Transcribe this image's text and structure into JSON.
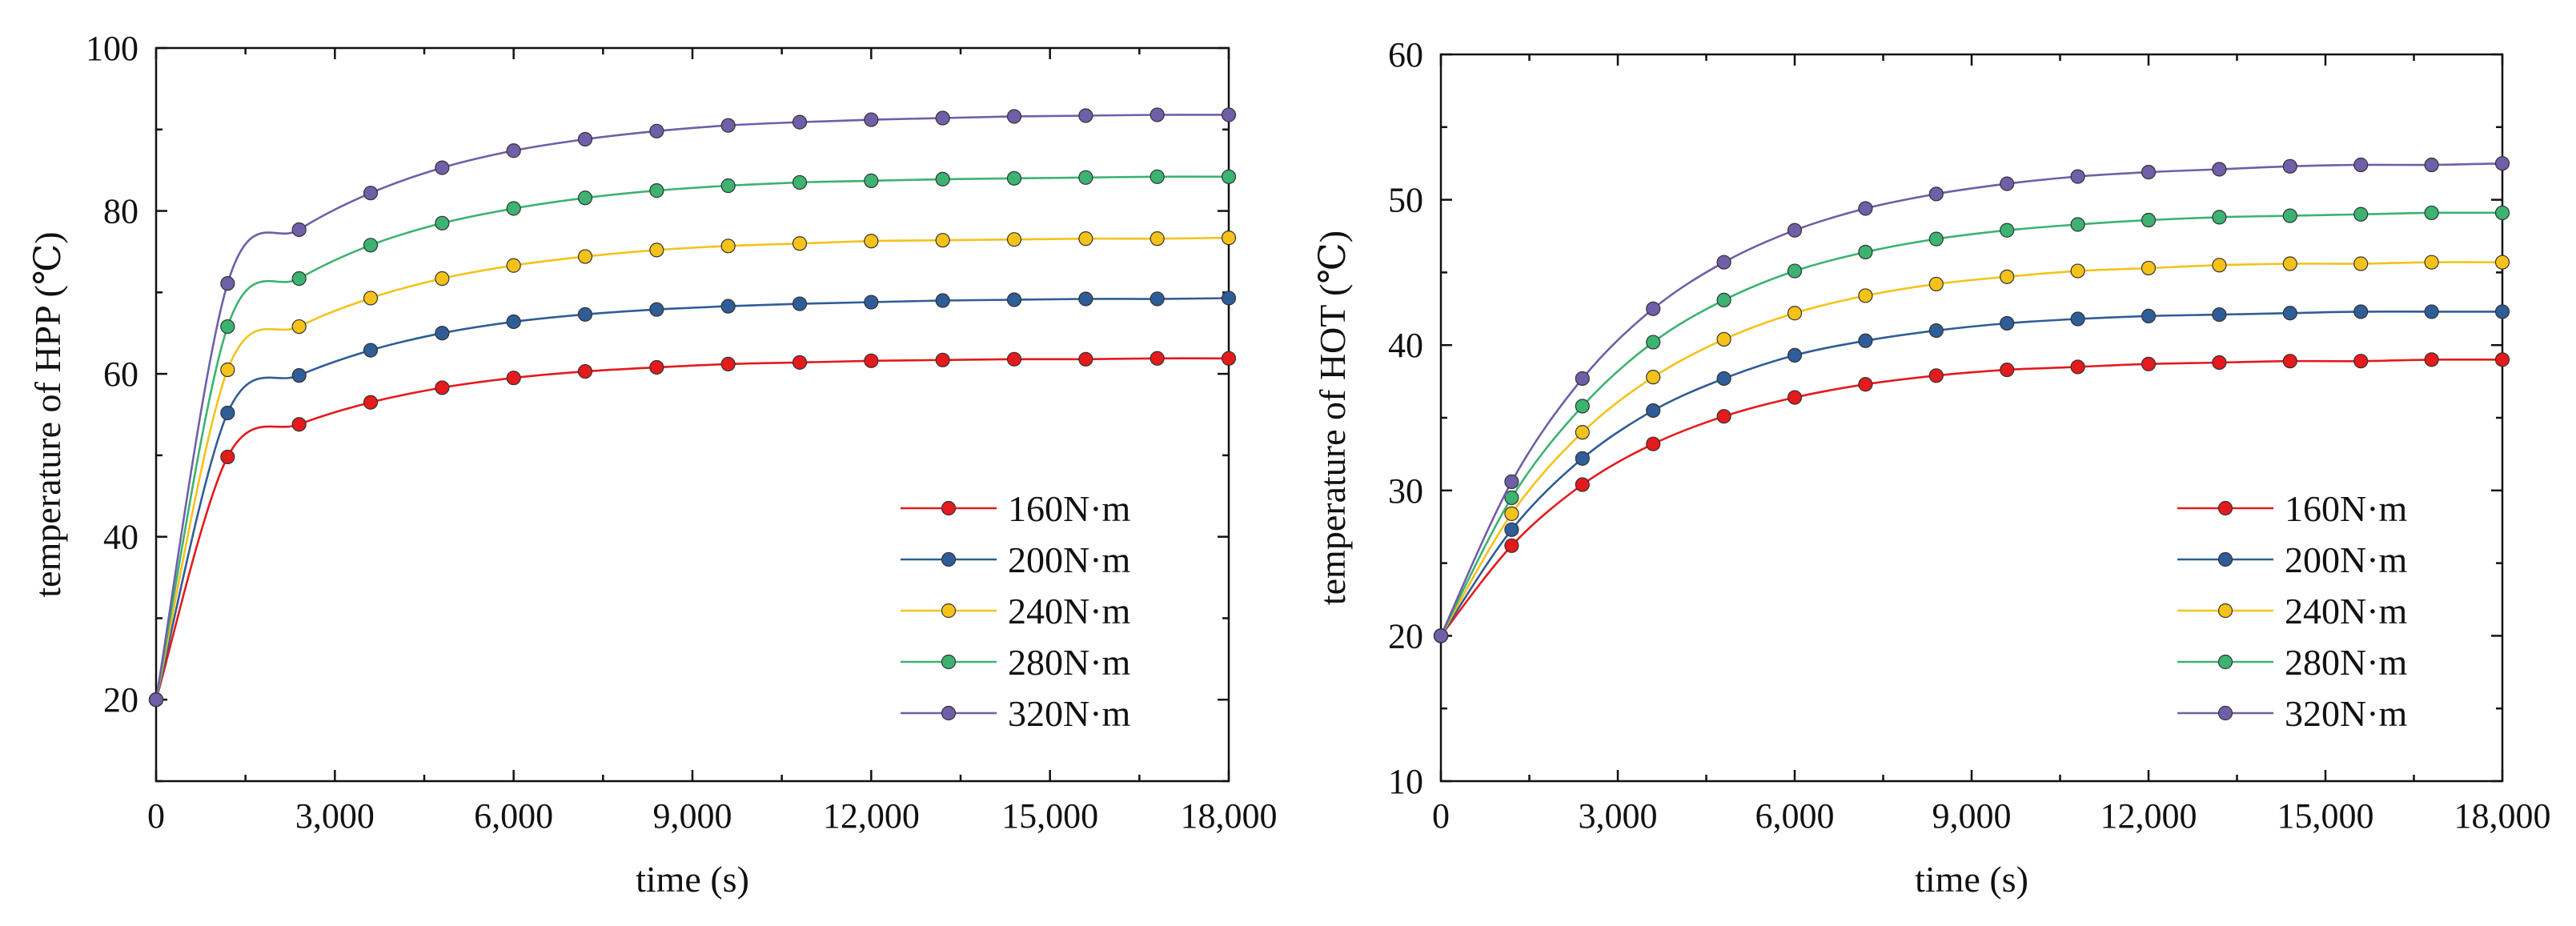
{
  "chart_data": [
    {
      "type": "line",
      "xlabel": "time (s)",
      "ylabel": "temperature of HPP (℃)",
      "xlim": [
        0,
        18000
      ],
      "ylim": [
        10,
        100
      ],
      "xticks": [
        0,
        3000,
        6000,
        9000,
        12000,
        15000,
        18000
      ],
      "xtick_labels": [
        "0",
        "3,000",
        "6,000",
        "9,000",
        "12,000",
        "15,000",
        "18,000"
      ],
      "yticks": [
        20,
        40,
        60,
        80,
        100
      ],
      "ytick_labels": [
        "20",
        "40",
        "60",
        "80",
        "100"
      ],
      "legend_position": "lower-right",
      "x": [
        0,
        1200,
        2400,
        3600,
        4800,
        6000,
        7200,
        8400,
        9600,
        10800,
        12000,
        13200,
        14400,
        15600,
        16800,
        18000
      ],
      "series": [
        {
          "name": "160N·m",
          "color": "#e41a1c",
          "values": [
            20,
            49.8,
            53.8,
            56.5,
            58.3,
            59.5,
            60.3,
            60.8,
            61.2,
            61.4,
            61.6,
            61.7,
            61.8,
            61.8,
            61.9,
            61.9
          ]
        },
        {
          "name": "200N·m",
          "color": "#2f5d98",
          "values": [
            20,
            55.2,
            59.8,
            62.9,
            65.0,
            66.4,
            67.3,
            67.9,
            68.3,
            68.6,
            68.8,
            69.0,
            69.1,
            69.2,
            69.2,
            69.3
          ]
        },
        {
          "name": "240N·m",
          "color": "#f5c21a",
          "values": [
            20,
            60.5,
            65.8,
            69.3,
            71.7,
            73.3,
            74.4,
            75.2,
            75.7,
            76.0,
            76.3,
            76.4,
            76.5,
            76.6,
            76.6,
            76.7
          ]
        },
        {
          "name": "280N·m",
          "color": "#3cb371",
          "values": [
            20,
            65.8,
            71.7,
            75.8,
            78.5,
            80.3,
            81.6,
            82.5,
            83.1,
            83.5,
            83.7,
            83.9,
            84.0,
            84.1,
            84.2,
            84.2
          ]
        },
        {
          "name": "320N·m",
          "color": "#6f5fa8",
          "values": [
            20,
            71.1,
            77.7,
            82.2,
            85.3,
            87.4,
            88.8,
            89.8,
            90.5,
            90.9,
            91.2,
            91.4,
            91.6,
            91.7,
            91.8,
            91.8
          ]
        }
      ]
    },
    {
      "type": "line",
      "xlabel": "time (s)",
      "ylabel": "temperature of HOT (℃)",
      "xlim": [
        0,
        18000
      ],
      "ylim": [
        10,
        60
      ],
      "xticks": [
        0,
        3000,
        6000,
        9000,
        12000,
        15000,
        18000
      ],
      "xtick_labels": [
        "0",
        "3,000",
        "6,000",
        "9,000",
        "12,000",
        "15,000",
        "18,000"
      ],
      "yticks": [
        10,
        20,
        30,
        40,
        50,
        60
      ],
      "ytick_labels": [
        "10",
        "20",
        "30",
        "40",
        "50",
        "60"
      ],
      "legend_position": "lower-right",
      "x": [
        0,
        1200,
        2400,
        3600,
        4800,
        6000,
        7200,
        8400,
        9600,
        10800,
        12000,
        13200,
        14400,
        15600,
        16800,
        18000
      ],
      "series": [
        {
          "name": "160N·m",
          "color": "#e41a1c",
          "values": [
            20,
            26.2,
            30.4,
            33.2,
            35.1,
            36.4,
            37.3,
            37.9,
            38.3,
            38.5,
            38.7,
            38.8,
            38.9,
            38.9,
            39.0,
            39.0
          ]
        },
        {
          "name": "200N·m",
          "color": "#2f5d98",
          "values": [
            20,
            27.3,
            32.2,
            35.5,
            37.7,
            39.3,
            40.3,
            41.0,
            41.5,
            41.8,
            42.0,
            42.1,
            42.2,
            42.3,
            42.3,
            42.3
          ]
        },
        {
          "name": "240N·m",
          "color": "#f5c21a",
          "values": [
            20,
            28.4,
            34.0,
            37.8,
            40.4,
            42.2,
            43.4,
            44.2,
            44.7,
            45.1,
            45.3,
            45.5,
            45.6,
            45.6,
            45.7,
            45.7
          ]
        },
        {
          "name": "280N·m",
          "color": "#3cb371",
          "values": [
            20,
            29.5,
            35.8,
            40.2,
            43.1,
            45.1,
            46.4,
            47.3,
            47.9,
            48.3,
            48.6,
            48.8,
            48.9,
            49.0,
            49.1,
            49.1
          ]
        },
        {
          "name": "320N·m",
          "color": "#6f5fa8",
          "values": [
            20,
            30.6,
            37.7,
            42.5,
            45.7,
            47.9,
            49.4,
            50.4,
            51.1,
            51.6,
            51.9,
            52.1,
            52.3,
            52.4,
            52.4,
            52.5
          ]
        }
      ]
    }
  ]
}
